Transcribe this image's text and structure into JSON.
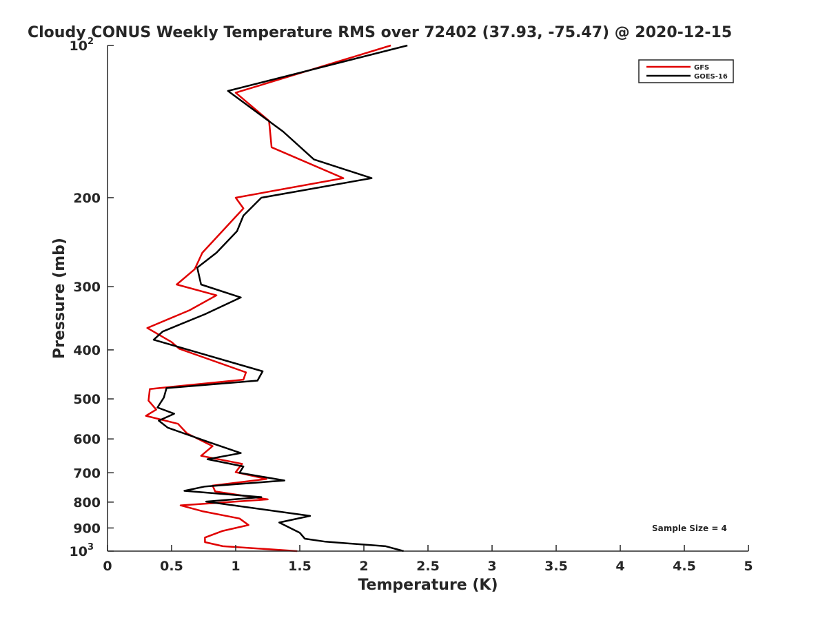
{
  "chart_data": {
    "type": "line",
    "title": "Cloudy CONUS Weekly Temperature RMS over 72402 (37.93, -75.47) @ 2020-12-15",
    "xlabel": "Temperature (K)",
    "ylabel": "Pressure (mb)",
    "xlim": [
      0,
      5
    ],
    "ylim": [
      100,
      1000
    ],
    "y_scale": "log",
    "y_reversed": true,
    "grid": false,
    "legend_position": "top-right",
    "x_ticks": [
      "0",
      "0.5",
      "1",
      "1.5",
      "2",
      "2.5",
      "3",
      "3.5",
      "4",
      "4.5",
      "5"
    ],
    "y_ticks": [
      {
        "value": 100,
        "label": "10",
        "sup": "2"
      },
      {
        "value": 200,
        "label": "200",
        "sup": ""
      },
      {
        "value": 300,
        "label": "300",
        "sup": ""
      },
      {
        "value": 400,
        "label": "400",
        "sup": ""
      },
      {
        "value": 500,
        "label": "500",
        "sup": ""
      },
      {
        "value": 600,
        "label": "600",
        "sup": ""
      },
      {
        "value": 700,
        "label": "700",
        "sup": ""
      },
      {
        "value": 800,
        "label": "800",
        "sup": ""
      },
      {
        "value": 900,
        "label": "900",
        "sup": ""
      },
      {
        "value": 1000,
        "label": "10",
        "sup": "3"
      }
    ],
    "annotation": "Sample Size = 4",
    "series": [
      {
        "name": "GFS",
        "color": "#e00000",
        "points": [
          [
            2.21,
            100
          ],
          [
            1.0,
            124
          ],
          [
            1.26,
            141
          ],
          [
            1.28,
            159
          ],
          [
            1.84,
            183
          ],
          [
            1.0,
            200
          ],
          [
            1.06,
            210
          ],
          [
            0.74,
            257
          ],
          [
            0.68,
            277
          ],
          [
            0.54,
            297
          ],
          [
            0.85,
            312
          ],
          [
            0.64,
            334
          ],
          [
            0.31,
            362
          ],
          [
            0.5,
            386
          ],
          [
            0.56,
            398
          ],
          [
            1.08,
            443
          ],
          [
            1.06,
            458
          ],
          [
            0.33,
            478
          ],
          [
            0.32,
            504
          ],
          [
            0.38,
            525
          ],
          [
            0.3,
            540
          ],
          [
            0.55,
            560
          ],
          [
            0.62,
            585
          ],
          [
            0.82,
            620
          ],
          [
            0.73,
            648
          ],
          [
            1.05,
            672
          ],
          [
            1.0,
            698
          ],
          [
            1.24,
            720
          ],
          [
            0.82,
            742
          ],
          [
            0.84,
            762
          ],
          [
            1.25,
            790
          ],
          [
            0.57,
            812
          ],
          [
            0.74,
            834
          ],
          [
            1.03,
            862
          ],
          [
            1.1,
            888
          ],
          [
            0.9,
            912
          ],
          [
            0.76,
            940
          ],
          [
            0.76,
            960
          ],
          [
            0.9,
            978
          ],
          [
            1.48,
            1000
          ]
        ]
      },
      {
        "name": "GOES-16",
        "color": "#000000",
        "points": [
          [
            2.34,
            100
          ],
          [
            0.94,
            123
          ],
          [
            1.37,
            148
          ],
          [
            1.61,
            168
          ],
          [
            2.06,
            183
          ],
          [
            1.2,
            200
          ],
          [
            1.06,
            217
          ],
          [
            1.01,
            233
          ],
          [
            0.85,
            257
          ],
          [
            0.7,
            275
          ],
          [
            0.73,
            297
          ],
          [
            1.04,
            315
          ],
          [
            0.76,
            340
          ],
          [
            0.43,
            368
          ],
          [
            0.36,
            382
          ],
          [
            1.21,
            441
          ],
          [
            1.17,
            460
          ],
          [
            0.46,
            476
          ],
          [
            0.44,
            497
          ],
          [
            0.39,
            520
          ],
          [
            0.52,
            535
          ],
          [
            0.4,
            552
          ],
          [
            0.47,
            570
          ],
          [
            0.8,
            610
          ],
          [
            1.04,
            640
          ],
          [
            0.78,
            658
          ],
          [
            1.06,
            680
          ],
          [
            1.03,
            700
          ],
          [
            1.38,
            725
          ],
          [
            0.76,
            745
          ],
          [
            0.6,
            760
          ],
          [
            1.2,
            782
          ],
          [
            0.77,
            798
          ],
          [
            1.58,
            852
          ],
          [
            1.34,
            878
          ],
          [
            1.5,
            920
          ],
          [
            1.54,
            945
          ],
          [
            1.7,
            958
          ],
          [
            2.17,
            978
          ],
          [
            2.31,
            1000
          ]
        ]
      }
    ]
  }
}
